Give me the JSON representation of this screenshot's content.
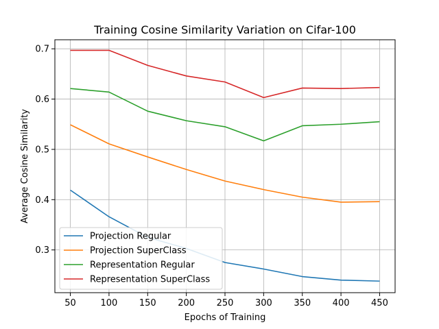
{
  "chart_data": {
    "type": "line",
    "title": "Training Cosine Similarity Variation on Cifar-100",
    "xlabel": "Epochs of Training",
    "ylabel": "Average Cosine Similarity",
    "x": [
      50,
      100,
      150,
      200,
      250,
      300,
      350,
      400,
      450
    ],
    "xlim": [
      30,
      470
    ],
    "ylim": [
      0.215,
      0.718
    ],
    "xticks": [
      50,
      100,
      150,
      200,
      250,
      300,
      350,
      400,
      450
    ],
    "yticks": [
      0.3,
      0.4,
      0.5,
      0.6,
      0.7
    ],
    "grid": true,
    "legend_position": "lower-left",
    "series": [
      {
        "name": "Projection Regular",
        "color": "#1f77b4",
        "values": [
          0.419,
          0.366,
          0.325,
          0.303,
          0.275,
          0.262,
          0.247,
          0.24,
          0.238
        ]
      },
      {
        "name": "Projection SuperClass",
        "color": "#ff7f0e",
        "values": [
          0.549,
          0.511,
          0.485,
          0.46,
          0.437,
          0.42,
          0.405,
          0.395,
          0.396
        ]
      },
      {
        "name": "Representation Regular",
        "color": "#2ca02c",
        "values": [
          0.621,
          0.614,
          0.576,
          0.557,
          0.545,
          0.517,
          0.547,
          0.55,
          0.555
        ]
      },
      {
        "name": "Representation SuperClass",
        "color": "#d62728",
        "values": [
          0.697,
          0.697,
          0.667,
          0.646,
          0.634,
          0.603,
          0.622,
          0.621,
          0.623
        ]
      }
    ]
  }
}
